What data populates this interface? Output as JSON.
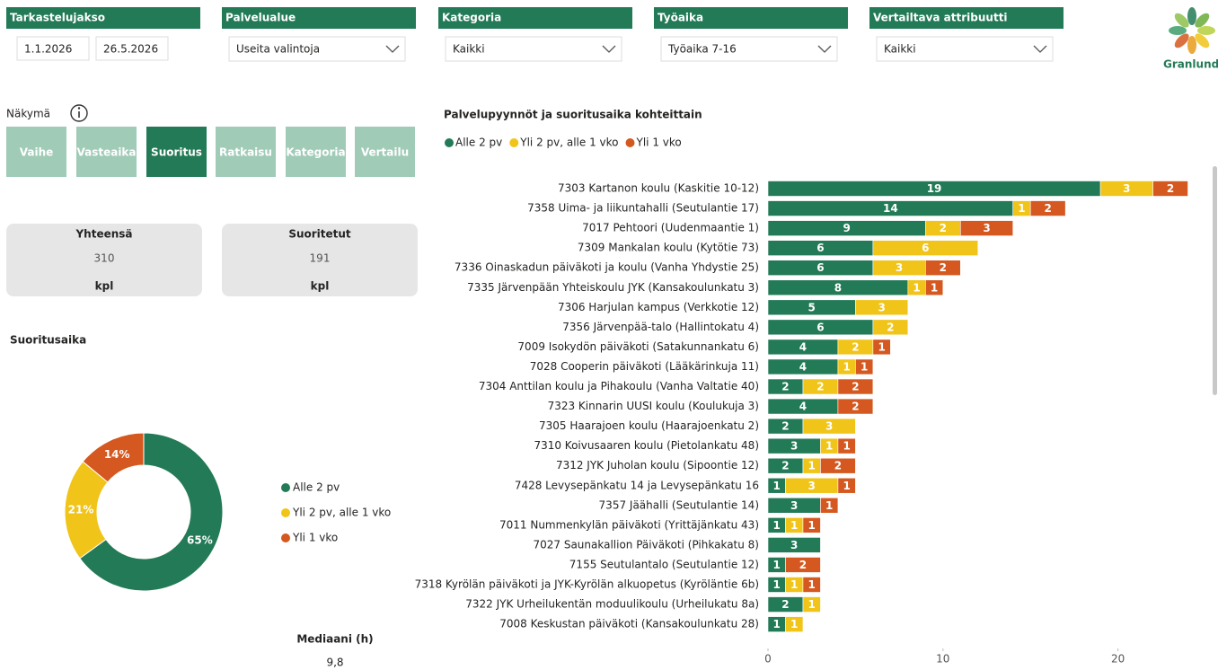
{
  "filters": [
    {
      "label": "Tarkastelujakso",
      "dates": [
        "1.1.2026",
        "26.5.2026"
      ]
    },
    {
      "label": "Palvelualue",
      "selection": "Useita valintoja"
    },
    {
      "label": "Kategoria",
      "selection": "Kaikki"
    },
    {
      "label": "Työaika",
      "selection": "Työaika 7-16"
    },
    {
      "label": "Vertailtava attribuutti",
      "selection": "Kaikki"
    }
  ],
  "logo": "Granlund",
  "view": {
    "label": "Näkymä",
    "buttons": [
      "Vaihe",
      "Vasteaika",
      "Suoritus",
      "Ratkaisu",
      "Kategoria",
      "Vertailu"
    ],
    "selected_index": 2
  },
  "kpis": [
    {
      "label": "Yhteensä",
      "value": 310,
      "unit": "kpl"
    },
    {
      "label": "Suoritetut",
      "value": 191,
      "unit": "kpl"
    }
  ],
  "median": {
    "label": "Mediaani (h)",
    "value": "9,8"
  },
  "chart_data": [
    {
      "type": "pie",
      "donut": true,
      "title": "Suoritusaika",
      "categories": [
        "Alle 2 pv",
        "Yli 2 pv, alle 1 vko",
        "Yli 1 vko"
      ],
      "values": [
        65,
        21,
        14
      ],
      "value_labels": [
        "65%",
        "21%",
        "14%"
      ],
      "colors": [
        "#237a57",
        "#f0c419",
        "#d4581f"
      ]
    },
    {
      "type": "bar",
      "orientation": "horizontal",
      "stacked": true,
      "title": "Palvelupyynnöt ja suoritusaika kohteittain",
      "categories": [
        "7303 Kartanon koulu (Kaskitie 10-12)",
        "7358 Uima- ja liikuntahalli (Seutulantie 17)",
        "7017 Pehtoori (Uudenmaantie 1)",
        "7309 Mankalan koulu (Kytötie 73)",
        "7336 Oinaskadun päiväkoti ja koulu (Vanha Yhdystie 25)",
        "7335 Järvenpään Yhteiskoulu JYK (Kansakoulunkatu 3)",
        "7306 Harjulan kampus (Verkkotie 12)",
        "7356 Järvenpää-talo (Hallintokatu 4)",
        "7009 Isokydön päiväkoti (Satakunnankatu 6)",
        "7028 Cooperin päiväkoti (Lääkärinkuja 11)",
        "7304 Anttilan koulu ja Pihakoulu (Vanha Valtatie 40)",
        "7323 Kinnarin UUSI koulu (Koulukuja 3)",
        "7305 Haarajoen koulu (Haarajoenkatu 2)",
        "7310 Koivusaaren koulu (Pietolankatu 48)",
        "7312 JYK Juholan koulu (Sipoontie 12)",
        "7428 Levysepänkatu 14 ja Levysepänkatu 16",
        "7357 Jäähalli (Seutulantie 14)",
        "7011 Nummenkylän päiväkoti (Yrittäjänkatu 43)",
        "7027 Saunakallion Päiväkoti (Pihkakatu 8)",
        "7155 Seutulantalo (Seutulantie 12)",
        "7318 Kyrölän päiväkoti ja JYK-Kyrölän alkuopetus (Kyröläntie 6b)",
        "7322 JYK Urheilukentän moduulikoulu (Urheilukatu 8a)",
        "7008 Keskustan päiväkoti (Kansakoulunkatu 28)"
      ],
      "series": [
        {
          "name": "Alle 2 pv",
          "color": "#237a57",
          "values": [
            19,
            14,
            9,
            6,
            6,
            8,
            5,
            6,
            4,
            4,
            2,
            4,
            2,
            3,
            2,
            1,
            3,
            1,
            3,
            1,
            1,
            2,
            1
          ]
        },
        {
          "name": "Yli 2 pv, alle 1 vko",
          "color": "#f0c419",
          "values": [
            3,
            1,
            2,
            6,
            3,
            1,
            3,
            2,
            2,
            1,
            2,
            null,
            3,
            1,
            1,
            3,
            null,
            1,
            null,
            null,
            1,
            1,
            1
          ]
        },
        {
          "name": "Yli 1 vko",
          "color": "#d4581f",
          "values": [
            2,
            2,
            3,
            null,
            2,
            1,
            null,
            null,
            1,
            1,
            2,
            2,
            null,
            1,
            2,
            1,
            1,
            1,
            null,
            2,
            1,
            null,
            null
          ]
        }
      ],
      "xlim": [
        0,
        25
      ],
      "xticks": [
        0,
        10,
        20
      ]
    }
  ]
}
